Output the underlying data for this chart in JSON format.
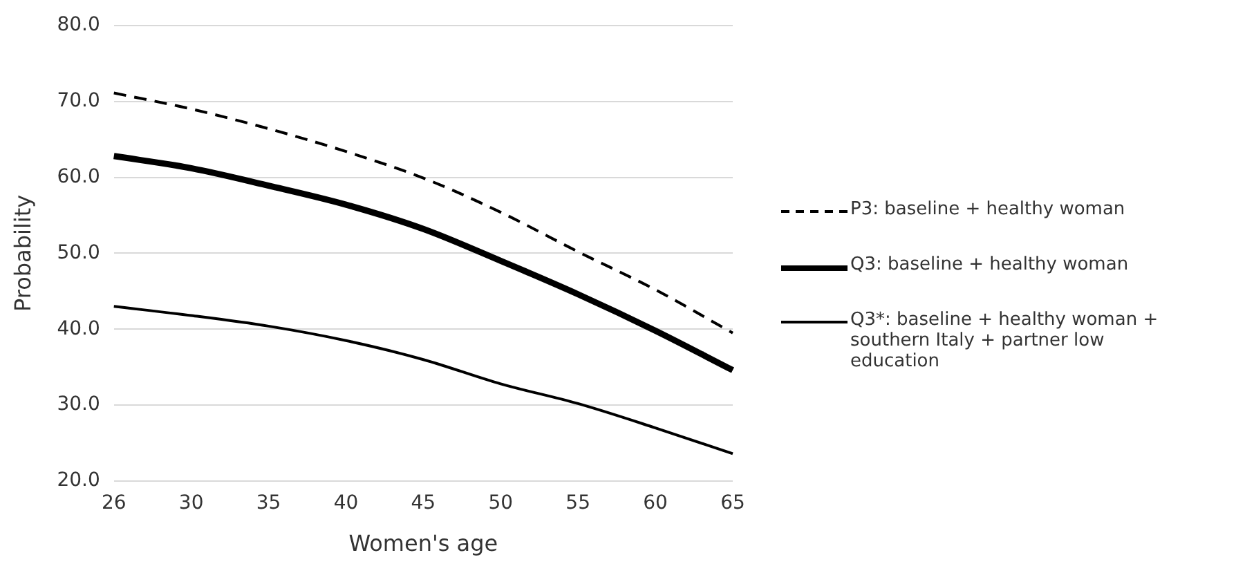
{
  "chart_data": {
    "type": "line",
    "xlabel": "Women's age",
    "ylabel": "Probability",
    "categories": [
      "26",
      "30",
      "35",
      "40",
      "45",
      "50",
      "55",
      "60",
      "65"
    ],
    "ylim": [
      20,
      80
    ],
    "yticks": [
      {
        "value": 20,
        "label": "20.0"
      },
      {
        "value": 30,
        "label": "30.0"
      },
      {
        "value": 40,
        "label": "40.0"
      },
      {
        "value": 50,
        "label": "50.0"
      },
      {
        "value": 60,
        "label": "60.0"
      },
      {
        "value": 70,
        "label": "70.0"
      },
      {
        "value": 80,
        "label": "80.0"
      }
    ],
    "grid": "y",
    "legend": "right",
    "marker": "none",
    "series": [
      {
        "name": "P3: baseline + healthy woman",
        "color": "#000000",
        "line_style": "dashed",
        "values": [
          71.1,
          69.0,
          66.4,
          63.4,
          59.9,
          55.4,
          50.2,
          45.2,
          39.5
        ]
      },
      {
        "name": "Q3: baseline + healthy woman",
        "color": "#000000",
        "line_style": "solid",
        "values": [
          62.8,
          61.2,
          58.9,
          56.4,
          53.2,
          49.0,
          44.6,
          39.8,
          34.6
        ]
      },
      {
        "name": "Q3*: baseline + healthy woman + southern Italy + partner low education",
        "color": "#000000",
        "line_style": "solid",
        "values": [
          43.0,
          41.8,
          40.4,
          38.5,
          36.0,
          32.8,
          30.2,
          27.0,
          23.6
        ]
      }
    ]
  }
}
